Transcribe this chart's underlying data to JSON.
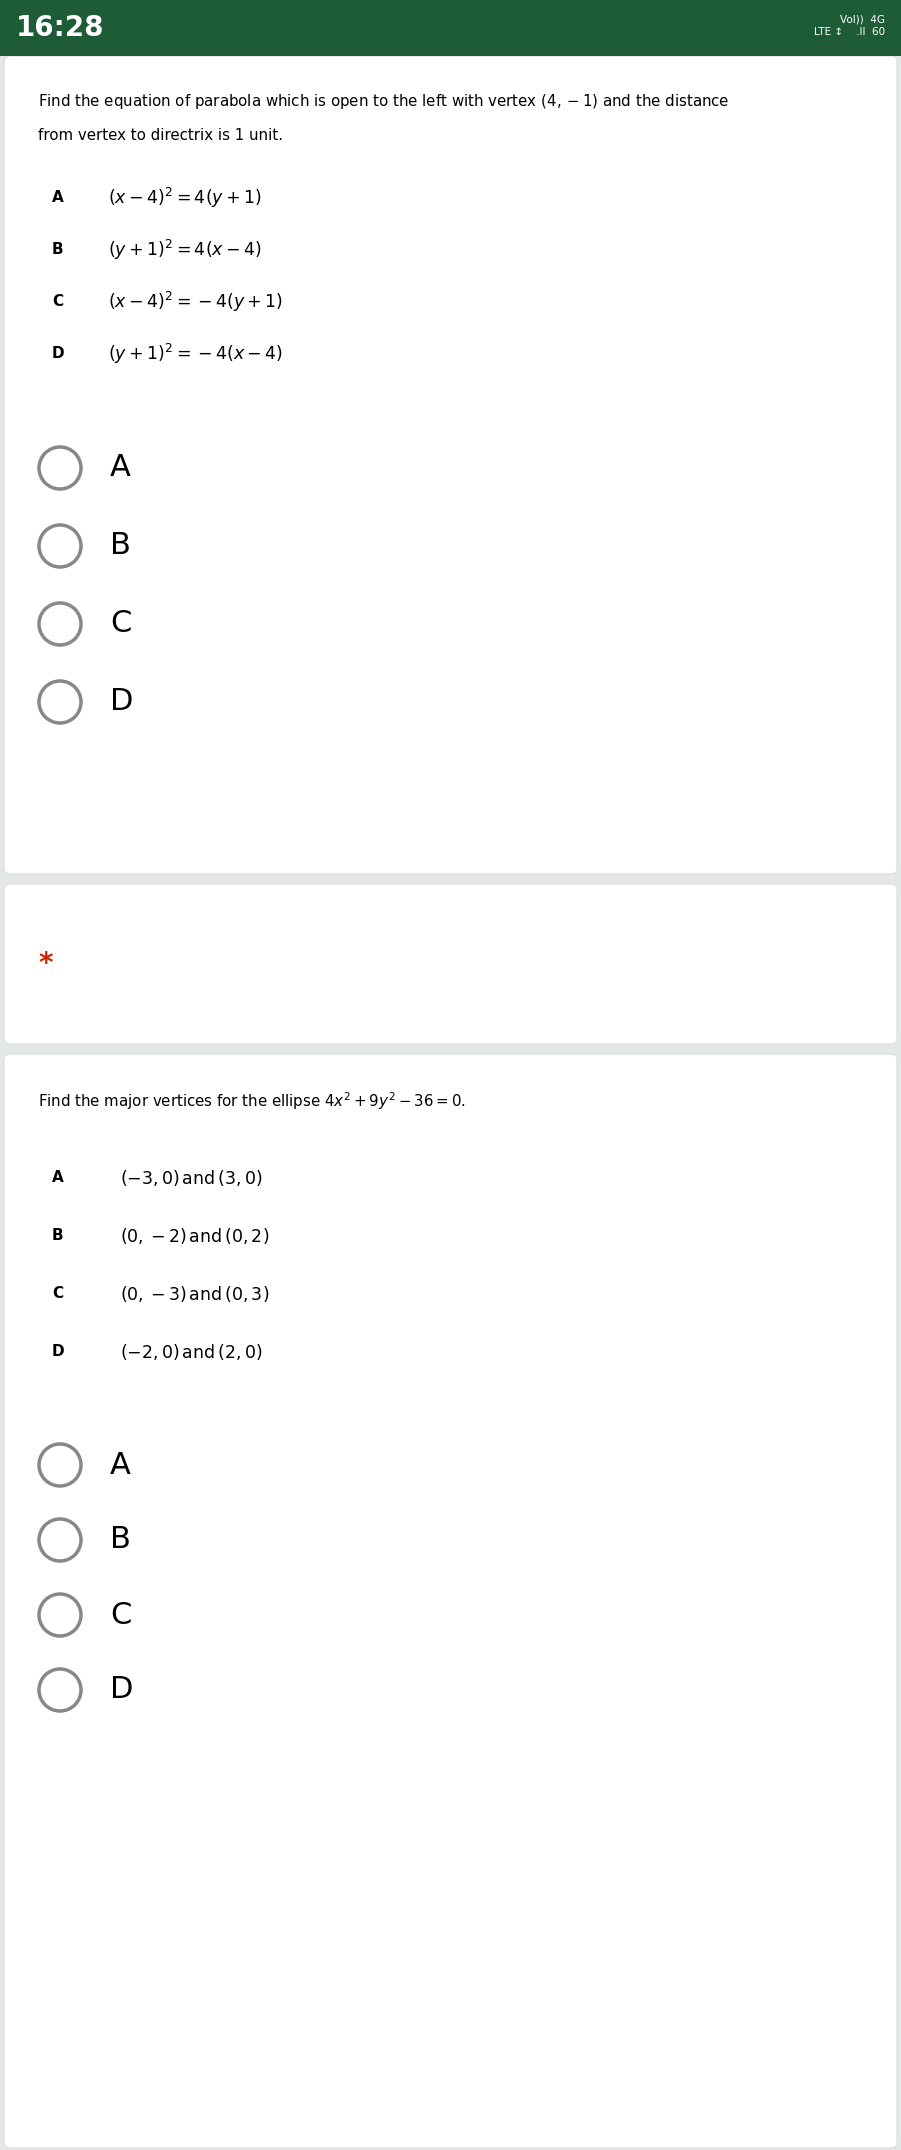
{
  "status_bar_bg": "#1e5c38",
  "page_bg": "#e4e8e4",
  "card_bg": "#ffffff",
  "card_border": "#d8d8d8",
  "text_color": "#000000",
  "circle_color": "#888888",
  "star_color": "#cc2200",
  "status_time": "16:28",
  "status_right": "Vol)) 4G\nLTE ↕’ .ll 60",
  "q1_line1": "Find the equation of parabola which is open to the left with vertex $(4,-1)$ and the distance",
  "q1_line2": "from vertex to directrix is 1 unit.",
  "q1_opts": [
    [
      "A",
      "$(x-4)^{2}=4(y+1)$"
    ],
    [
      "B",
      "$(y+1)^{2}=4(x-4)$"
    ],
    [
      "C",
      "$(x-4)^{2}=-4(y+1)$"
    ],
    [
      "D",
      "$(y+1)^{2}=-4(x-4)$"
    ]
  ],
  "q1_radios": [
    "A",
    "B",
    "C",
    "D"
  ],
  "star": "*",
  "q2_line": "Find the major vertices for the ellipse $4x^{2}+9y^{2}-36=0.$",
  "q2_opts": [
    [
      "A",
      "$(-3,0)\\,\\mathrm{and}\\,(3,0)$"
    ],
    [
      "B",
      "$(0,-2)\\,\\mathrm{and}\\,(0,2)$"
    ],
    [
      "C",
      "$(0,-3)\\,\\mathrm{and}\\,(0,3)$"
    ],
    [
      "D",
      "$(-2,0)\\,\\mathrm{and}\\,(2,0)$"
    ]
  ],
  "q2_radios": [
    "A",
    "B",
    "C",
    "D"
  ]
}
